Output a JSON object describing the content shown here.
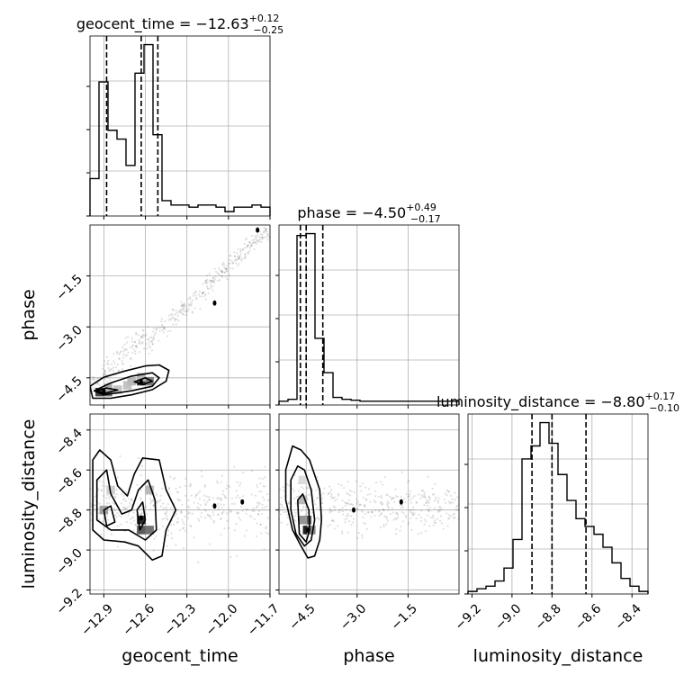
{
  "chart_data": {
    "type": "corner",
    "parameters": [
      {
        "name": "geocent_time",
        "axis_label": "geocent_time",
        "title_prefix": "geocent_time = ",
        "title_value": "−12.63",
        "title_plus": "+0.12",
        "title_minus": "−0.25",
        "range": [
          -13.0,
          -11.7
        ],
        "ticks": [
          -12.9,
          -12.6,
          -12.3,
          -12.0,
          -11.7
        ],
        "tick_labels": [
          "−12.9",
          "−12.6",
          "−12.3",
          "−12.0",
          "−11.7"
        ],
        "quantiles": [
          -12.88,
          -12.63,
          -12.51
        ],
        "hist_bins": [
          -13.0,
          -12.935,
          -12.87,
          -12.805,
          -12.74,
          -12.675,
          -12.61,
          -12.545,
          -12.48,
          -12.415,
          -12.35,
          -12.285,
          -12.22,
          -12.155,
          -12.09,
          -12.025,
          -11.96,
          -11.895,
          -11.83,
          -11.765,
          -11.7
        ],
        "hist_values": [
          0.17,
          0.61,
          0.39,
          0.35,
          0.23,
          0.65,
          0.78,
          0.37,
          0.07,
          0.05,
          0.05,
          0.04,
          0.05,
          0.05,
          0.04,
          0.02,
          0.04,
          0.04,
          0.05,
          0.04
        ]
      },
      {
        "name": "phase",
        "axis_label": "phase",
        "title_prefix": "phase = ",
        "title_value": "−4.50",
        "title_plus": "+0.49",
        "title_minus": "−0.17",
        "range": [
          -5.3,
          0.0
        ],
        "ticks": [
          -4.5,
          -3.0,
          -1.5
        ],
        "tick_labels": [
          "−4.5",
          "−3.0",
          "−1.5"
        ],
        "quantiles": [
          -4.67,
          -4.5,
          -4.01
        ],
        "hist_bins": [
          -5.3,
          -5.035,
          -4.77,
          -4.505,
          -4.24,
          -3.975,
          -3.71,
          -3.445,
          -3.18,
          -2.915,
          -2.65,
          -2.385,
          -2.12,
          -1.855,
          -1.59,
          -1.325,
          -1.06,
          -0.795,
          -0.53,
          -0.265,
          0.0
        ],
        "hist_values": [
          0.02,
          0.03,
          0.89,
          0.9,
          0.35,
          0.17,
          0.04,
          0.03,
          0.025,
          0.02,
          0.02,
          0.02,
          0.02,
          0.02,
          0.02,
          0.02,
          0.02,
          0.02,
          0.02,
          0.02
        ]
      },
      {
        "name": "luminosity_distance",
        "axis_label": "luminosity_distance",
        "title_prefix": "luminosity_distance = ",
        "title_value": "−8.80",
        "title_plus": "+0.17",
        "title_minus": "−0.10",
        "range": [
          -9.22,
          -8.32
        ],
        "ticks": [
          -9.2,
          -9.0,
          -8.8,
          -8.6,
          -8.4
        ],
        "tick_labels": [
          "−9.2",
          "−9.0",
          "−8.8",
          "−8.6",
          "−8.4"
        ],
        "quantiles": [
          -8.9,
          -8.8,
          -8.63
        ],
        "hist_bins": [
          -9.22,
          -9.175,
          -9.13,
          -9.085,
          -9.04,
          -8.995,
          -8.95,
          -8.905,
          -8.86,
          -8.815,
          -8.77,
          -8.725,
          -8.68,
          -8.635,
          -8.59,
          -8.545,
          -8.5,
          -8.455,
          -8.41,
          -8.365,
          -8.32
        ],
        "hist_values": [
          0.01,
          0.02,
          0.03,
          0.05,
          0.1,
          0.21,
          0.52,
          0.57,
          0.66,
          0.58,
          0.46,
          0.36,
          0.29,
          0.26,
          0.23,
          0.18,
          0.12,
          0.06,
          0.03,
          0.01
        ]
      }
    ],
    "pairs": [
      {
        "x": "geocent_time",
        "y": "phase",
        "modes": [
          [
            -12.9,
            -4.9
          ],
          [
            -12.63,
            -4.62
          ],
          [
            -12.1,
            -2.3
          ],
          [
            -11.79,
            -0.15
          ]
        ],
        "contours": [
          [
            [
              -13.0,
              -4.75
            ],
            [
              -12.9,
              -4.48
            ],
            [
              -12.75,
              -4.3
            ],
            [
              -12.6,
              -4.15
            ],
            [
              -12.5,
              -4.12
            ],
            [
              -12.43,
              -4.28
            ],
            [
              -12.45,
              -4.6
            ],
            [
              -12.55,
              -4.85
            ],
            [
              -12.7,
              -5.0
            ],
            [
              -12.85,
              -5.1
            ],
            [
              -12.98,
              -5.1
            ]
          ],
          [
            [
              -12.97,
              -4.88
            ],
            [
              -12.85,
              -4.65
            ],
            [
              -12.7,
              -4.45
            ],
            [
              -12.55,
              -4.35
            ],
            [
              -12.5,
              -4.5
            ],
            [
              -12.55,
              -4.75
            ],
            [
              -12.7,
              -4.88
            ],
            [
              -12.9,
              -5.0
            ]
          ],
          [
            [
              -12.95,
              -4.88
            ],
            [
              -12.88,
              -4.8
            ],
            [
              -12.8,
              -4.86
            ],
            [
              -12.9,
              -4.96
            ]
          ],
          [
            [
              -12.68,
              -4.62
            ],
            [
              -12.6,
              -4.5
            ],
            [
              -12.55,
              -4.6
            ],
            [
              -12.62,
              -4.7
            ]
          ]
        ],
        "hist2d_cells": [
          [
            -12.93,
            -4.92,
            0.8
          ],
          [
            -12.87,
            -4.92,
            0.6
          ],
          [
            -12.87,
            -4.8,
            0.35
          ],
          [
            -12.8,
            -4.85,
            0.25
          ],
          [
            -12.73,
            -4.72,
            0.25
          ],
          [
            -12.63,
            -4.6,
            0.85
          ],
          [
            -12.57,
            -4.6,
            0.55
          ],
          [
            -12.63,
            -4.48,
            0.3
          ],
          [
            -12.7,
            -4.6,
            0.3
          ]
        ]
      },
      {
        "x": "geocent_time",
        "y": "luminosity_distance",
        "modes": [
          [
            -12.63,
            -8.84
          ],
          [
            -12.1,
            -8.78
          ],
          [
            -11.9,
            -8.76
          ]
        ],
        "contours": [
          [
            [
              -12.98,
              -8.55
            ],
            [
              -12.93,
              -8.5
            ],
            [
              -12.85,
              -8.55
            ],
            [
              -12.8,
              -8.68
            ],
            [
              -12.73,
              -8.73
            ],
            [
              -12.68,
              -8.62
            ],
            [
              -12.62,
              -8.54
            ],
            [
              -12.5,
              -8.55
            ],
            [
              -12.45,
              -8.7
            ],
            [
              -12.38,
              -8.8
            ],
            [
              -12.45,
              -8.9
            ],
            [
              -12.48,
              -9.03
            ],
            [
              -12.55,
              -9.05
            ],
            [
              -12.65,
              -8.98
            ],
            [
              -12.75,
              -8.96
            ],
            [
              -12.9,
              -8.95
            ],
            [
              -12.98,
              -8.9
            ]
          ],
          [
            [
              -12.95,
              -8.65
            ],
            [
              -12.88,
              -8.6
            ],
            [
              -12.85,
              -8.72
            ],
            [
              -12.77,
              -8.82
            ],
            [
              -12.7,
              -8.8
            ],
            [
              -12.65,
              -8.7
            ],
            [
              -12.58,
              -8.65
            ],
            [
              -12.53,
              -8.75
            ],
            [
              -12.52,
              -8.9
            ],
            [
              -12.6,
              -8.95
            ],
            [
              -12.72,
              -8.9
            ],
            [
              -12.85,
              -8.9
            ],
            [
              -12.95,
              -8.85
            ]
          ],
          [
            [
              -12.66,
              -8.8
            ],
            [
              -12.62,
              -8.76
            ],
            [
              -12.6,
              -8.85
            ],
            [
              -12.64,
              -8.9
            ]
          ],
          [
            [
              -12.9,
              -8.8
            ],
            [
              -12.85,
              -8.78
            ],
            [
              -12.82,
              -8.86
            ],
            [
              -12.88,
              -8.88
            ]
          ]
        ],
        "hist2d_cells": [
          [
            -12.63,
            -8.85,
            0.9
          ],
          [
            -12.63,
            -8.9,
            0.7
          ],
          [
            -12.57,
            -8.9,
            0.6
          ],
          [
            -12.9,
            -8.8,
            0.4
          ],
          [
            -12.85,
            -8.7,
            0.2
          ],
          [
            -12.57,
            -8.7,
            0.3
          ]
        ]
      },
      {
        "x": "phase",
        "y": "luminosity_distance",
        "modes": [
          [
            -4.45,
            -8.9
          ],
          [
            -3.1,
            -8.8
          ],
          [
            -1.7,
            -8.76
          ]
        ],
        "contours": [
          [
            [
              -5.1,
              -8.6
            ],
            [
              -4.9,
              -8.48
            ],
            [
              -4.65,
              -8.5
            ],
            [
              -4.4,
              -8.55
            ],
            [
              -4.1,
              -8.7
            ],
            [
              -4.05,
              -8.85
            ],
            [
              -4.1,
              -8.95
            ],
            [
              -4.25,
              -9.03
            ],
            [
              -4.45,
              -9.04
            ],
            [
              -4.65,
              -8.98
            ],
            [
              -4.9,
              -8.9
            ],
            [
              -5.1,
              -8.75
            ]
          ],
          [
            [
              -4.95,
              -8.65
            ],
            [
              -4.75,
              -8.58
            ],
            [
              -4.55,
              -8.6
            ],
            [
              -4.35,
              -8.7
            ],
            [
              -4.25,
              -8.85
            ],
            [
              -4.35,
              -8.95
            ],
            [
              -4.55,
              -8.98
            ],
            [
              -4.8,
              -8.92
            ],
            [
              -4.95,
              -8.8
            ]
          ],
          [
            [
              -4.75,
              -8.75
            ],
            [
              -4.6,
              -8.72
            ],
            [
              -4.42,
              -8.8
            ],
            [
              -4.4,
              -8.9
            ],
            [
              -4.5,
              -8.96
            ],
            [
              -4.7,
              -8.92
            ]
          ]
        ],
        "hist2d_cells": [
          [
            -4.47,
            -8.9,
            0.95
          ],
          [
            -4.47,
            -8.85,
            0.7
          ],
          [
            -4.6,
            -8.85,
            0.45
          ],
          [
            -4.6,
            -8.75,
            0.3
          ],
          [
            -4.35,
            -8.9,
            0.5
          ],
          [
            -4.6,
            -8.65,
            0.15
          ]
        ]
      }
    ],
    "grid": true,
    "scatter_color": "#555555",
    "contour_color": "#000000",
    "hist_color": "#000000",
    "grid_color": "#b0b0b0"
  }
}
